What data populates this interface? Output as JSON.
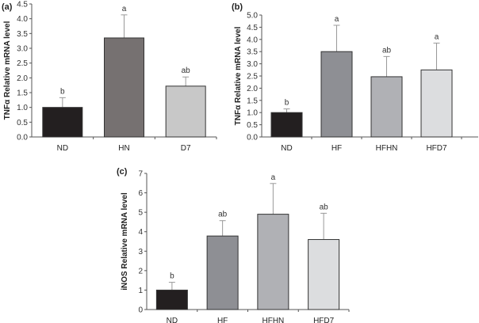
{
  "chart_data": [
    {
      "type": "bar",
      "panel_label": "(a)",
      "ylabel": "TNFα Relative mRNA level",
      "ylim": [
        0,
        4.5
      ],
      "ytick_step": 0.5,
      "ytick_decimals": 1,
      "categories": [
        "ND",
        "HN",
        "D7"
      ],
      "values": [
        1.0,
        3.35,
        1.72
      ],
      "error_upper": [
        0.33,
        0.78,
        0.31
      ],
      "significance": [
        "b",
        "a",
        "ab"
      ],
      "colors": [
        "#231f20",
        "#767171",
        "#c8c8c8"
      ]
    },
    {
      "type": "bar",
      "panel_label": "(b)",
      "ylabel": "TNFα Relative mRNA level",
      "ylim": [
        0,
        5.0
      ],
      "ytick_step": 0.5,
      "ytick_decimals": 1,
      "categories": [
        "ND",
        "HF",
        "HFHN",
        "HFD7"
      ],
      "values": [
        1.0,
        3.5,
        2.47,
        2.75
      ],
      "error_upper": [
        0.15,
        1.08,
        0.83,
        1.1
      ],
      "significance": [
        "b",
        "a",
        "ab",
        "a"
      ],
      "colors": [
        "#231f20",
        "#8e8f94",
        "#b0b1b5",
        "#dcdddf"
      ]
    },
    {
      "type": "bar",
      "panel_label": "(c)",
      "ylabel": "iNOS Relative mRNA level",
      "ylim": [
        0,
        7
      ],
      "ytick_step": 1,
      "ytick_decimals": 0,
      "categories": [
        "ND",
        "HF",
        "HFHN",
        "HFD7"
      ],
      "values": [
        1.0,
        3.78,
        4.9,
        3.6
      ],
      "error_upper": [
        0.4,
        0.79,
        1.58,
        1.35
      ],
      "significance": [
        "b",
        "ab",
        "a",
        "ab"
      ],
      "colors": [
        "#231f20",
        "#8e8f94",
        "#b0b1b5",
        "#dcdddf"
      ]
    }
  ]
}
